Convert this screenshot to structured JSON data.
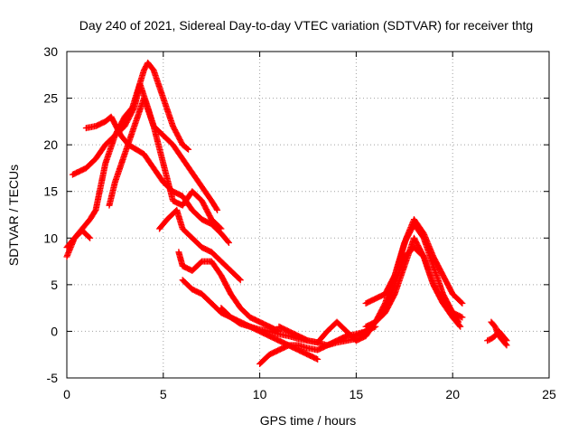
{
  "chart_data": {
    "type": "scatter",
    "title": "Day 240 of 2021, Sidereal Day-to-day VTEC variation (SDTVAR) for receiver thtg",
    "xlabel": "GPS time / hours",
    "ylabel": "SDTVAR / TECUs",
    "xlim": [
      0,
      25
    ],
    "ylim": [
      -5,
      30
    ],
    "xticks": [
      0,
      5,
      10,
      15,
      20,
      25
    ],
    "yticks": [
      -5,
      0,
      5,
      10,
      15,
      20,
      25,
      30
    ],
    "grid": true,
    "marker": "+",
    "color": "#ff0000",
    "series": [
      {
        "name": "track-1",
        "x": [
          0.0,
          0.4,
          0.8,
          1.2,
          1.5,
          1.7,
          2.0,
          2.5,
          3.0,
          3.4,
          3.7,
          4.0,
          4.2,
          4.5,
          5.0,
          5.5,
          6.0,
          6.3
        ],
        "y": [
          8,
          10,
          11,
          12,
          13,
          15,
          18,
          21,
          23,
          24,
          26,
          28,
          28.8,
          28,
          25,
          22,
          20,
          19.5
        ]
      },
      {
        "name": "track-2",
        "x": [
          0.3,
          1.0,
          1.5,
          2.0,
          2.5,
          3.0,
          3.5,
          3.8,
          4.2,
          4.5,
          5.0,
          5.5,
          6.0,
          6.5,
          7.0,
          7.5,
          7.8
        ],
        "y": [
          16.8,
          17.5,
          18.5,
          20,
          21,
          22,
          24,
          26.5,
          24,
          22,
          21,
          20,
          18.5,
          17,
          15.5,
          14,
          13
        ]
      },
      {
        "name": "track-3",
        "x": [
          1.0,
          1.5,
          2.0,
          2.3,
          2.8,
          3.2,
          3.6,
          4.0,
          4.5,
          5.0,
          5.5,
          6.0,
          6.5,
          7.0,
          7.5,
          8.0,
          8.4
        ],
        "y": [
          21.8,
          22,
          22.5,
          23,
          21,
          20,
          19.5,
          19,
          17.5,
          16,
          15,
          14.5,
          13,
          12,
          11.5,
          10.5,
          9.5
        ]
      },
      {
        "name": "track-4",
        "x": [
          2.2,
          2.5,
          3.0,
          3.5,
          4.0,
          4.5,
          5.0,
          5.5,
          6.0,
          6.5,
          7.0,
          7.5,
          8.0
        ],
        "y": [
          13.5,
          16,
          19,
          22,
          25,
          22,
          18,
          14,
          13.5,
          15,
          14,
          12,
          11
        ]
      },
      {
        "name": "track-5",
        "x": [
          0.0,
          0.4,
          0.8,
          1.2
        ],
        "y": [
          9,
          10,
          10.8,
          10
        ]
      },
      {
        "name": "track-6",
        "x": [
          4.8,
          5.2,
          5.7,
          6.0,
          6.5,
          7.0,
          7.5,
          8.0,
          8.5,
          9.0
        ],
        "y": [
          11,
          12,
          13,
          11,
          10,
          9,
          8.5,
          7.5,
          6.5,
          5.5
        ]
      },
      {
        "name": "track-7",
        "x": [
          5.8,
          6.0,
          6.5,
          7.0,
          7.5,
          8.0,
          8.5,
          9.0,
          9.5,
          10.0,
          10.5,
          11.0
        ],
        "y": [
          8.5,
          7,
          6.5,
          7.5,
          7.5,
          6,
          4,
          2.5,
          1.5,
          1,
          0.5,
          0
        ]
      },
      {
        "name": "track-8",
        "x": [
          6.0,
          6.5,
          7.0,
          7.5,
          8.0,
          8.5,
          9.0,
          9.5,
          10.0,
          10.5,
          11.0,
          11.5,
          12.0,
          12.5,
          13.0
        ],
        "y": [
          5.5,
          4.5,
          4,
          3,
          2,
          1.5,
          1,
          0.5,
          0,
          -0.5,
          -1,
          -1.5,
          -2,
          -2.5,
          -3
        ]
      },
      {
        "name": "track-9",
        "x": [
          8.0,
          8.5,
          9.0,
          9.5,
          10.0,
          10.5,
          11.0,
          11.5,
          12.0,
          12.5,
          13.0,
          13.5,
          14.0,
          14.5,
          15.0
        ],
        "y": [
          2.5,
          1.5,
          0.8,
          0.5,
          0.2,
          0,
          -0.3,
          -0.5,
          -0.8,
          -1,
          -1.2,
          -1.5,
          -1.2,
          -1,
          -0.8
        ]
      },
      {
        "name": "track-10",
        "x": [
          10.0,
          10.5,
          11.0,
          11.5,
          12.0,
          12.5,
          13.0,
          13.5,
          14.0,
          14.5,
          15.0,
          15.5,
          16.0
        ],
        "y": [
          -3.5,
          -2.5,
          -2,
          -1.5,
          -1.5,
          -1.8,
          -2,
          -1.5,
          -1,
          -0.5,
          -0.3,
          0,
          0.5
        ]
      },
      {
        "name": "track-11",
        "x": [
          11.0,
          11.5,
          12.0,
          12.5,
          13.0,
          13.5,
          14.0,
          14.5,
          15.0,
          15.5,
          16.0,
          16.5,
          17.0,
          17.5,
          18.0,
          18.5,
          19.0,
          19.5,
          20.0,
          20.3
        ],
        "y": [
          0.5,
          0,
          -0.5,
          -1,
          -1.2,
          0,
          1,
          0,
          -1,
          -0.5,
          1,
          3,
          6,
          9.5,
          11.5,
          10,
          7,
          4,
          2,
          1
        ]
      },
      {
        "name": "track-12",
        "x": [
          15.5,
          16.0,
          16.5,
          17.0,
          17.3,
          17.6,
          18.0,
          18.5,
          19.0,
          19.5,
          20.0,
          20.5
        ],
        "y": [
          3,
          3.5,
          4,
          6,
          8,
          10,
          12,
          10.5,
          8,
          6,
          4,
          3
        ]
      },
      {
        "name": "track-13",
        "x": [
          15.0,
          15.5,
          16.0,
          16.5,
          17.0,
          17.5,
          18.0,
          18.5,
          19.0,
          19.5,
          20.0,
          20.4
        ],
        "y": [
          -0.5,
          0,
          1,
          2,
          4,
          7,
          10,
          8,
          5,
          3,
          1.5,
          0.5
        ]
      },
      {
        "name": "track-14",
        "x": [
          15.5,
          16.0,
          16.5,
          17.0,
          17.5,
          18.0,
          18.5,
          19.0,
          19.5,
          20.0,
          20.5
        ],
        "y": [
          0.5,
          1,
          2.5,
          5,
          8,
          9,
          8,
          5,
          3,
          2,
          1.5
        ]
      },
      {
        "name": "track-15",
        "x": [
          22.0,
          22.2,
          22.4,
          22.6,
          22.8
        ],
        "y": [
          1,
          0.5,
          -0.5,
          -1,
          -1.5
        ]
      },
      {
        "name": "track-16",
        "x": [
          21.8,
          22.0,
          22.2,
          22.4,
          22.6,
          22.8
        ],
        "y": [
          -1,
          -0.8,
          -0.5,
          0,
          -0.5,
          -1
        ]
      }
    ]
  }
}
